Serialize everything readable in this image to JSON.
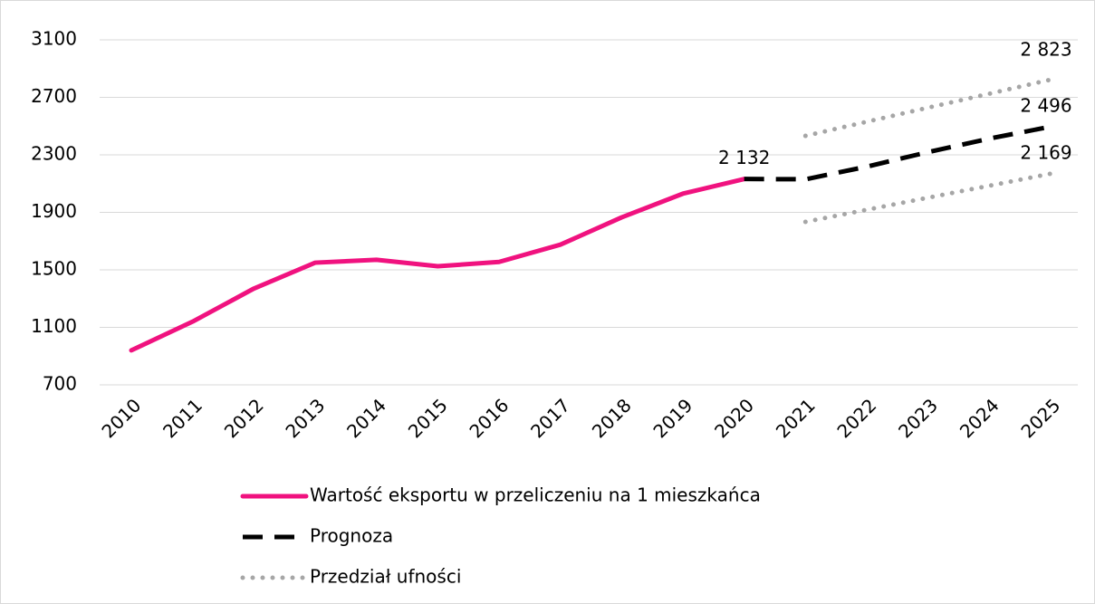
{
  "chart_data": {
    "type": "line",
    "categories": [
      "2010",
      "2011",
      "2012",
      "2013",
      "2014",
      "2015",
      "2016",
      "2017",
      "2018",
      "2019",
      "2020",
      "2021",
      "2022",
      "2023",
      "2024",
      "2025"
    ],
    "ylim": [
      700,
      3100
    ],
    "yticks": [
      700,
      1100,
      1500,
      1900,
      2300,
      2700,
      3100
    ],
    "grid": true,
    "legend": "bottom",
    "series": [
      {
        "name": "Wartość eksportu w przeliczeniu na 1 mieszkańca",
        "color": "#f0127f",
        "style": "solid",
        "values": [
          940,
          1140,
          1370,
          1550,
          1570,
          1525,
          1555,
          1675,
          1865,
          2030,
          2132,
          null,
          null,
          null,
          null,
          null
        ],
        "value_labels": [
          null,
          null,
          null,
          null,
          null,
          null,
          null,
          null,
          null,
          null,
          "2 132",
          null,
          null,
          null,
          null,
          null
        ]
      },
      {
        "name": "Prognoza",
        "color": "#000000",
        "style": "dashed",
        "values": [
          null,
          null,
          null,
          null,
          null,
          null,
          null,
          null,
          null,
          null,
          2132,
          2130,
          2218,
          2319,
          2413,
          2496
        ],
        "value_labels": [
          null,
          null,
          null,
          null,
          null,
          null,
          null,
          null,
          null,
          null,
          null,
          null,
          null,
          null,
          null,
          "2 496"
        ]
      },
      {
        "name": "Przedział ufności",
        "color": "#a6a6a6",
        "style": "dotted",
        "values": [
          null,
          null,
          null,
          null,
          null,
          null,
          null,
          null,
          null,
          null,
          null,
          2432,
          2530,
          2628,
          2725,
          2823
        ],
        "value_labels": [
          null,
          null,
          null,
          null,
          null,
          null,
          null,
          null,
          null,
          null,
          null,
          null,
          null,
          null,
          null,
          "2 823"
        ]
      },
      {
        "color": "#a6a6a6",
        "style": "dotted",
        "values": [
          null,
          null,
          null,
          null,
          null,
          null,
          null,
          null,
          null,
          null,
          null,
          1834,
          1918,
          2002,
          2085,
          2169
        ],
        "value_labels": [
          null,
          null,
          null,
          null,
          null,
          null,
          null,
          null,
          null,
          null,
          null,
          null,
          null,
          null,
          null,
          "2 169"
        ]
      }
    ]
  }
}
